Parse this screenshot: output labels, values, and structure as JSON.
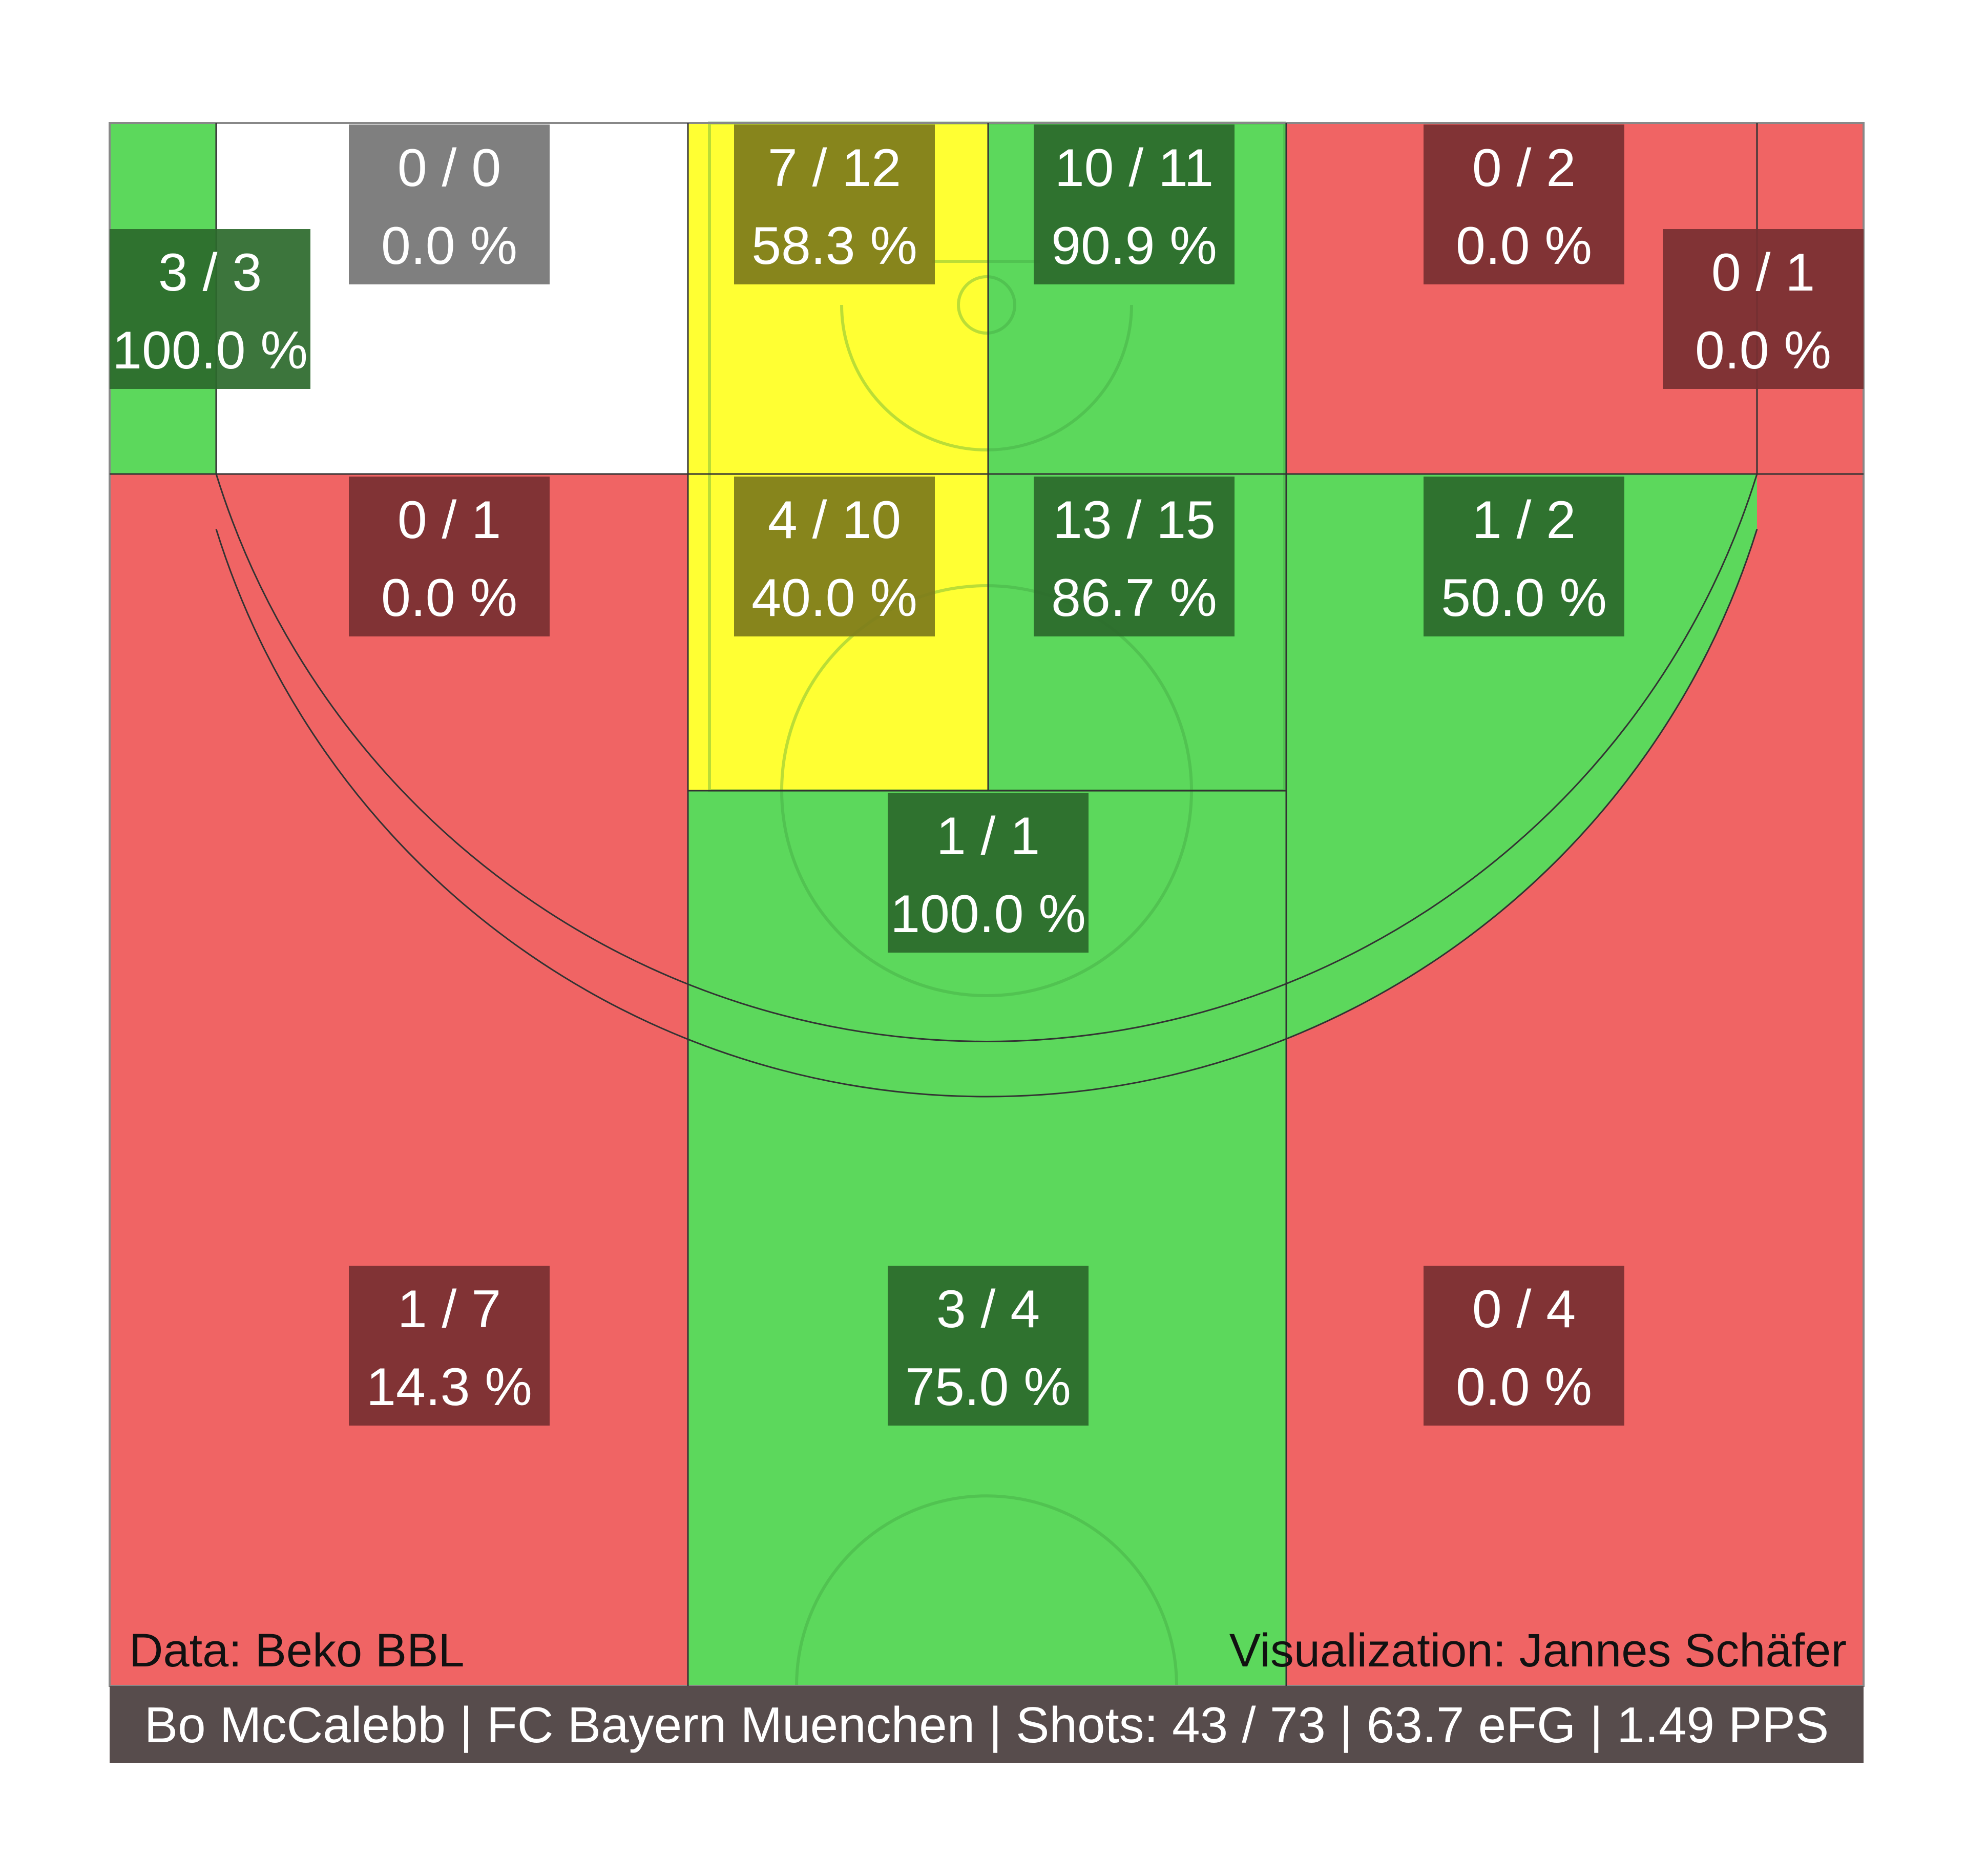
{
  "chart_data": {
    "type": "heatmap",
    "title": "",
    "colors": {
      "red": "#f06464",
      "green": "#5cd85c",
      "yellow": "#ffff33",
      "white": "#ffffff",
      "label_red": "#772f31",
      "label_green": "#2b692b",
      "label_yellow": "#7d7b1a",
      "label_grey": "#7f7f7f",
      "footer": "#574c4c",
      "court_line": "#3d9e3d"
    },
    "zones": [
      {
        "id": "left-corner-three",
        "made": 3,
        "attempts": 3,
        "made_label": "3 / 3",
        "pct_label": "100.0 %",
        "color": "green"
      },
      {
        "id": "left-baseline-mid",
        "made": 0,
        "attempts": 0,
        "made_label": "0 / 0",
        "pct_label": "0.0 %",
        "color": "white"
      },
      {
        "id": "left-paint-near",
        "made": 7,
        "attempts": 12,
        "made_label": "7 / 12",
        "pct_label": "58.3 %",
        "color": "yellow"
      },
      {
        "id": "right-paint-near",
        "made": 10,
        "attempts": 11,
        "made_label": "10 / 11",
        "pct_label": "90.9 %",
        "color": "green"
      },
      {
        "id": "right-baseline-mid",
        "made": 0,
        "attempts": 2,
        "made_label": "0 / 2",
        "pct_label": "0.0 %",
        "color": "red"
      },
      {
        "id": "right-corner-three",
        "made": 0,
        "attempts": 1,
        "made_label": "0 / 1",
        "pct_label": "0.0 %",
        "color": "red"
      },
      {
        "id": "left-wing-mid",
        "made": 0,
        "attempts": 1,
        "made_label": "0 / 1",
        "pct_label": "0.0 %",
        "color": "red"
      },
      {
        "id": "left-paint-far",
        "made": 4,
        "attempts": 10,
        "made_label": "4 / 10",
        "pct_label": "40.0 %",
        "color": "yellow"
      },
      {
        "id": "right-paint-far",
        "made": 13,
        "attempts": 15,
        "made_label": "13 / 15",
        "pct_label": "86.7 %",
        "color": "green"
      },
      {
        "id": "right-wing-mid",
        "made": 1,
        "attempts": 2,
        "made_label": "1 / 2",
        "pct_label": "50.0 %",
        "color": "green"
      },
      {
        "id": "top-key-mid",
        "made": 1,
        "attempts": 1,
        "made_label": "1 / 1",
        "pct_label": "100.0 %",
        "color": "green"
      },
      {
        "id": "left-wing-three",
        "made": 1,
        "attempts": 7,
        "made_label": "1 / 7",
        "pct_label": "14.3 %",
        "color": "red"
      },
      {
        "id": "top-three",
        "made": 3,
        "attempts": 4,
        "made_label": "3 / 4",
        "pct_label": "75.0 %",
        "color": "green"
      },
      {
        "id": "right-wing-three",
        "made": 0,
        "attempts": 4,
        "made_label": "0 / 4",
        "pct_label": "0.0 %",
        "color": "red"
      }
    ],
    "credits": {
      "data": "Data: Beko BBL",
      "visualization": "Visualization: Jannes Schäfer"
    },
    "footer": "Bo McCalebb | FC Bayern Muenchen | Shots: 43 / 73 | 63.7 eFG | 1.49 PPS"
  }
}
